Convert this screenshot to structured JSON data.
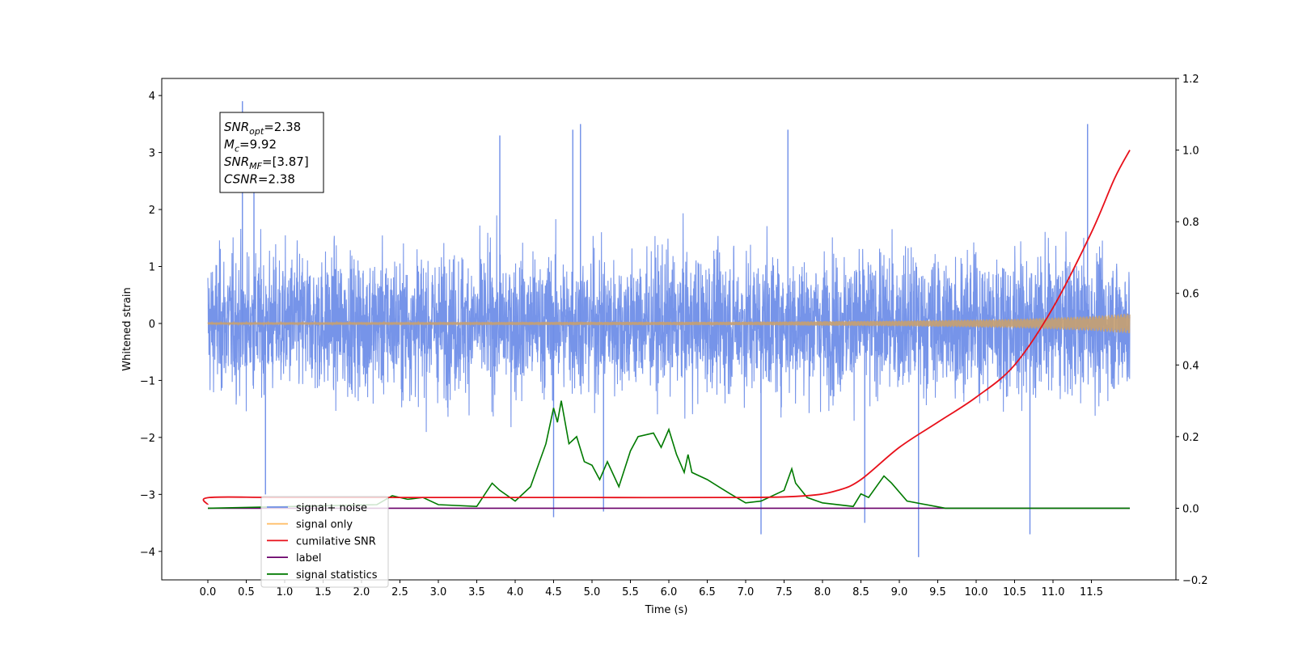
{
  "chart_data": {
    "type": "line",
    "xlabel": "Time (s)",
    "ylabel": "Whitened strain",
    "xlim": [
      -0.6,
      12.6
    ],
    "ylim": [
      -4.5,
      4.3
    ],
    "y2lim": [
      -0.2,
      1.2
    ],
    "x_ticks": [
      "0.0",
      "0.5",
      "1.0",
      "1.5",
      "2.0",
      "2.5",
      "3.0",
      "3.5",
      "4.0",
      "4.5",
      "5.0",
      "5.5",
      "6.0",
      "6.5",
      "7.0",
      "7.5",
      "8.0",
      "8.5",
      "9.0",
      "9.5",
      "10.0",
      "10.5",
      "11.0",
      "11.5"
    ],
    "y_ticks": [
      "4",
      "3",
      "2",
      "1",
      "0",
      "−1",
      "−2",
      "−3",
      "−4"
    ],
    "y2_ticks": [
      "1.2",
      "1.0",
      "0.8",
      "0.6",
      "0.4",
      "0.2",
      "0.0",
      "−0.2"
    ],
    "stats_box": {
      "lines": [
        {
          "name": "SNR",
          "sub": "opt",
          "value": "=2.38"
        },
        {
          "name": "M",
          "sub": "c",
          "value": "=9.92"
        },
        {
          "name": "SNR",
          "sub": "MF",
          "value": "=[3.87]"
        },
        {
          "name": "CSNR",
          "sub": "",
          "value": "=2.38"
        }
      ]
    },
    "legend": {
      "placement": "lower-left",
      "entries": [
        {
          "label": "signal+ noise",
          "color": "#6f8ee8"
        },
        {
          "label": "signal only",
          "color": "#ffbf6a"
        },
        {
          "label": "cumilative SNR",
          "color": "#e8101a"
        },
        {
          "label": "label",
          "color": "#6a006a"
        },
        {
          "label": "signal statistics",
          "color": "#007a00"
        }
      ]
    },
    "series": [
      {
        "name": "signal+ noise",
        "axis": "left",
        "description_values": "Gaussian-like noise over t=0..12 s with amplitude mostly within about -2.5 to 3; prominent spikes",
        "x_range": [
          0.0,
          12.0
        ],
        "envelope_top": 2.0,
        "envelope_bottom": -2.0,
        "spikes": [
          [
            0.45,
            3.9
          ],
          [
            0.6,
            3.2
          ],
          [
            3.8,
            3.3
          ],
          [
            4.85,
            3.5
          ],
          [
            4.75,
            3.4
          ],
          [
            7.55,
            3.4
          ],
          [
            11.45,
            3.5
          ],
          [
            4.5,
            -3.4
          ],
          [
            7.2,
            -3.7
          ],
          [
            8.55,
            -3.5
          ],
          [
            9.25,
            -4.1
          ],
          [
            10.7,
            -3.7
          ],
          [
            5.15,
            -3.3
          ],
          [
            0.75,
            -3.0
          ]
        ]
      },
      {
        "name": "signal only",
        "axis": "left",
        "x_range": [
          0.0,
          12.0
        ],
        "amplitude_points": [
          [
            0.0,
            0.02
          ],
          [
            7.0,
            0.03
          ],
          [
            9.0,
            0.05
          ],
          [
            10.5,
            0.08
          ],
          [
            11.5,
            0.13
          ],
          [
            12.0,
            0.18
          ]
        ]
      },
      {
        "name": "cumilative SNR",
        "axis": "right",
        "x": [
          0.0,
          0.02,
          1.0,
          3.0,
          5.0,
          7.0,
          7.8,
          8.2,
          8.5,
          9.0,
          9.5,
          10.0,
          10.5,
          11.0,
          11.5,
          11.8,
          12.0
        ],
        "y": [
          0.01,
          0.03,
          0.03,
          0.03,
          0.03,
          0.03,
          0.035,
          0.05,
          0.08,
          0.17,
          0.24,
          0.31,
          0.4,
          0.56,
          0.77,
          0.92,
          1.0
        ]
      },
      {
        "name": "label",
        "axis": "right",
        "x": [
          0.0,
          12.0
        ],
        "y": [
          0.0,
          0.0
        ]
      },
      {
        "name": "signal statistics",
        "axis": "right",
        "x": [
          0.0,
          2.2,
          2.4,
          2.6,
          2.8,
          3.0,
          3.5,
          3.7,
          3.8,
          4.0,
          4.2,
          4.4,
          4.5,
          4.55,
          4.6,
          4.7,
          4.8,
          4.9,
          5.0,
          5.1,
          5.2,
          5.35,
          5.5,
          5.6,
          5.8,
          5.9,
          6.0,
          6.1,
          6.2,
          6.25,
          6.3,
          6.5,
          6.8,
          7.0,
          7.2,
          7.5,
          7.6,
          7.65,
          7.8,
          8.0,
          8.4,
          8.5,
          8.6,
          8.8,
          8.9,
          9.1,
          9.6,
          12.0
        ],
        "y": [
          0.0,
          0.01,
          0.035,
          0.025,
          0.03,
          0.01,
          0.005,
          0.07,
          0.05,
          0.02,
          0.06,
          0.18,
          0.28,
          0.24,
          0.3,
          0.18,
          0.2,
          0.13,
          0.12,
          0.08,
          0.13,
          0.06,
          0.16,
          0.2,
          0.21,
          0.17,
          0.22,
          0.15,
          0.1,
          0.15,
          0.1,
          0.08,
          0.04,
          0.015,
          0.02,
          0.05,
          0.11,
          0.07,
          0.03,
          0.015,
          0.005,
          0.04,
          0.03,
          0.09,
          0.07,
          0.02,
          0.0,
          0.0
        ]
      }
    ]
  }
}
